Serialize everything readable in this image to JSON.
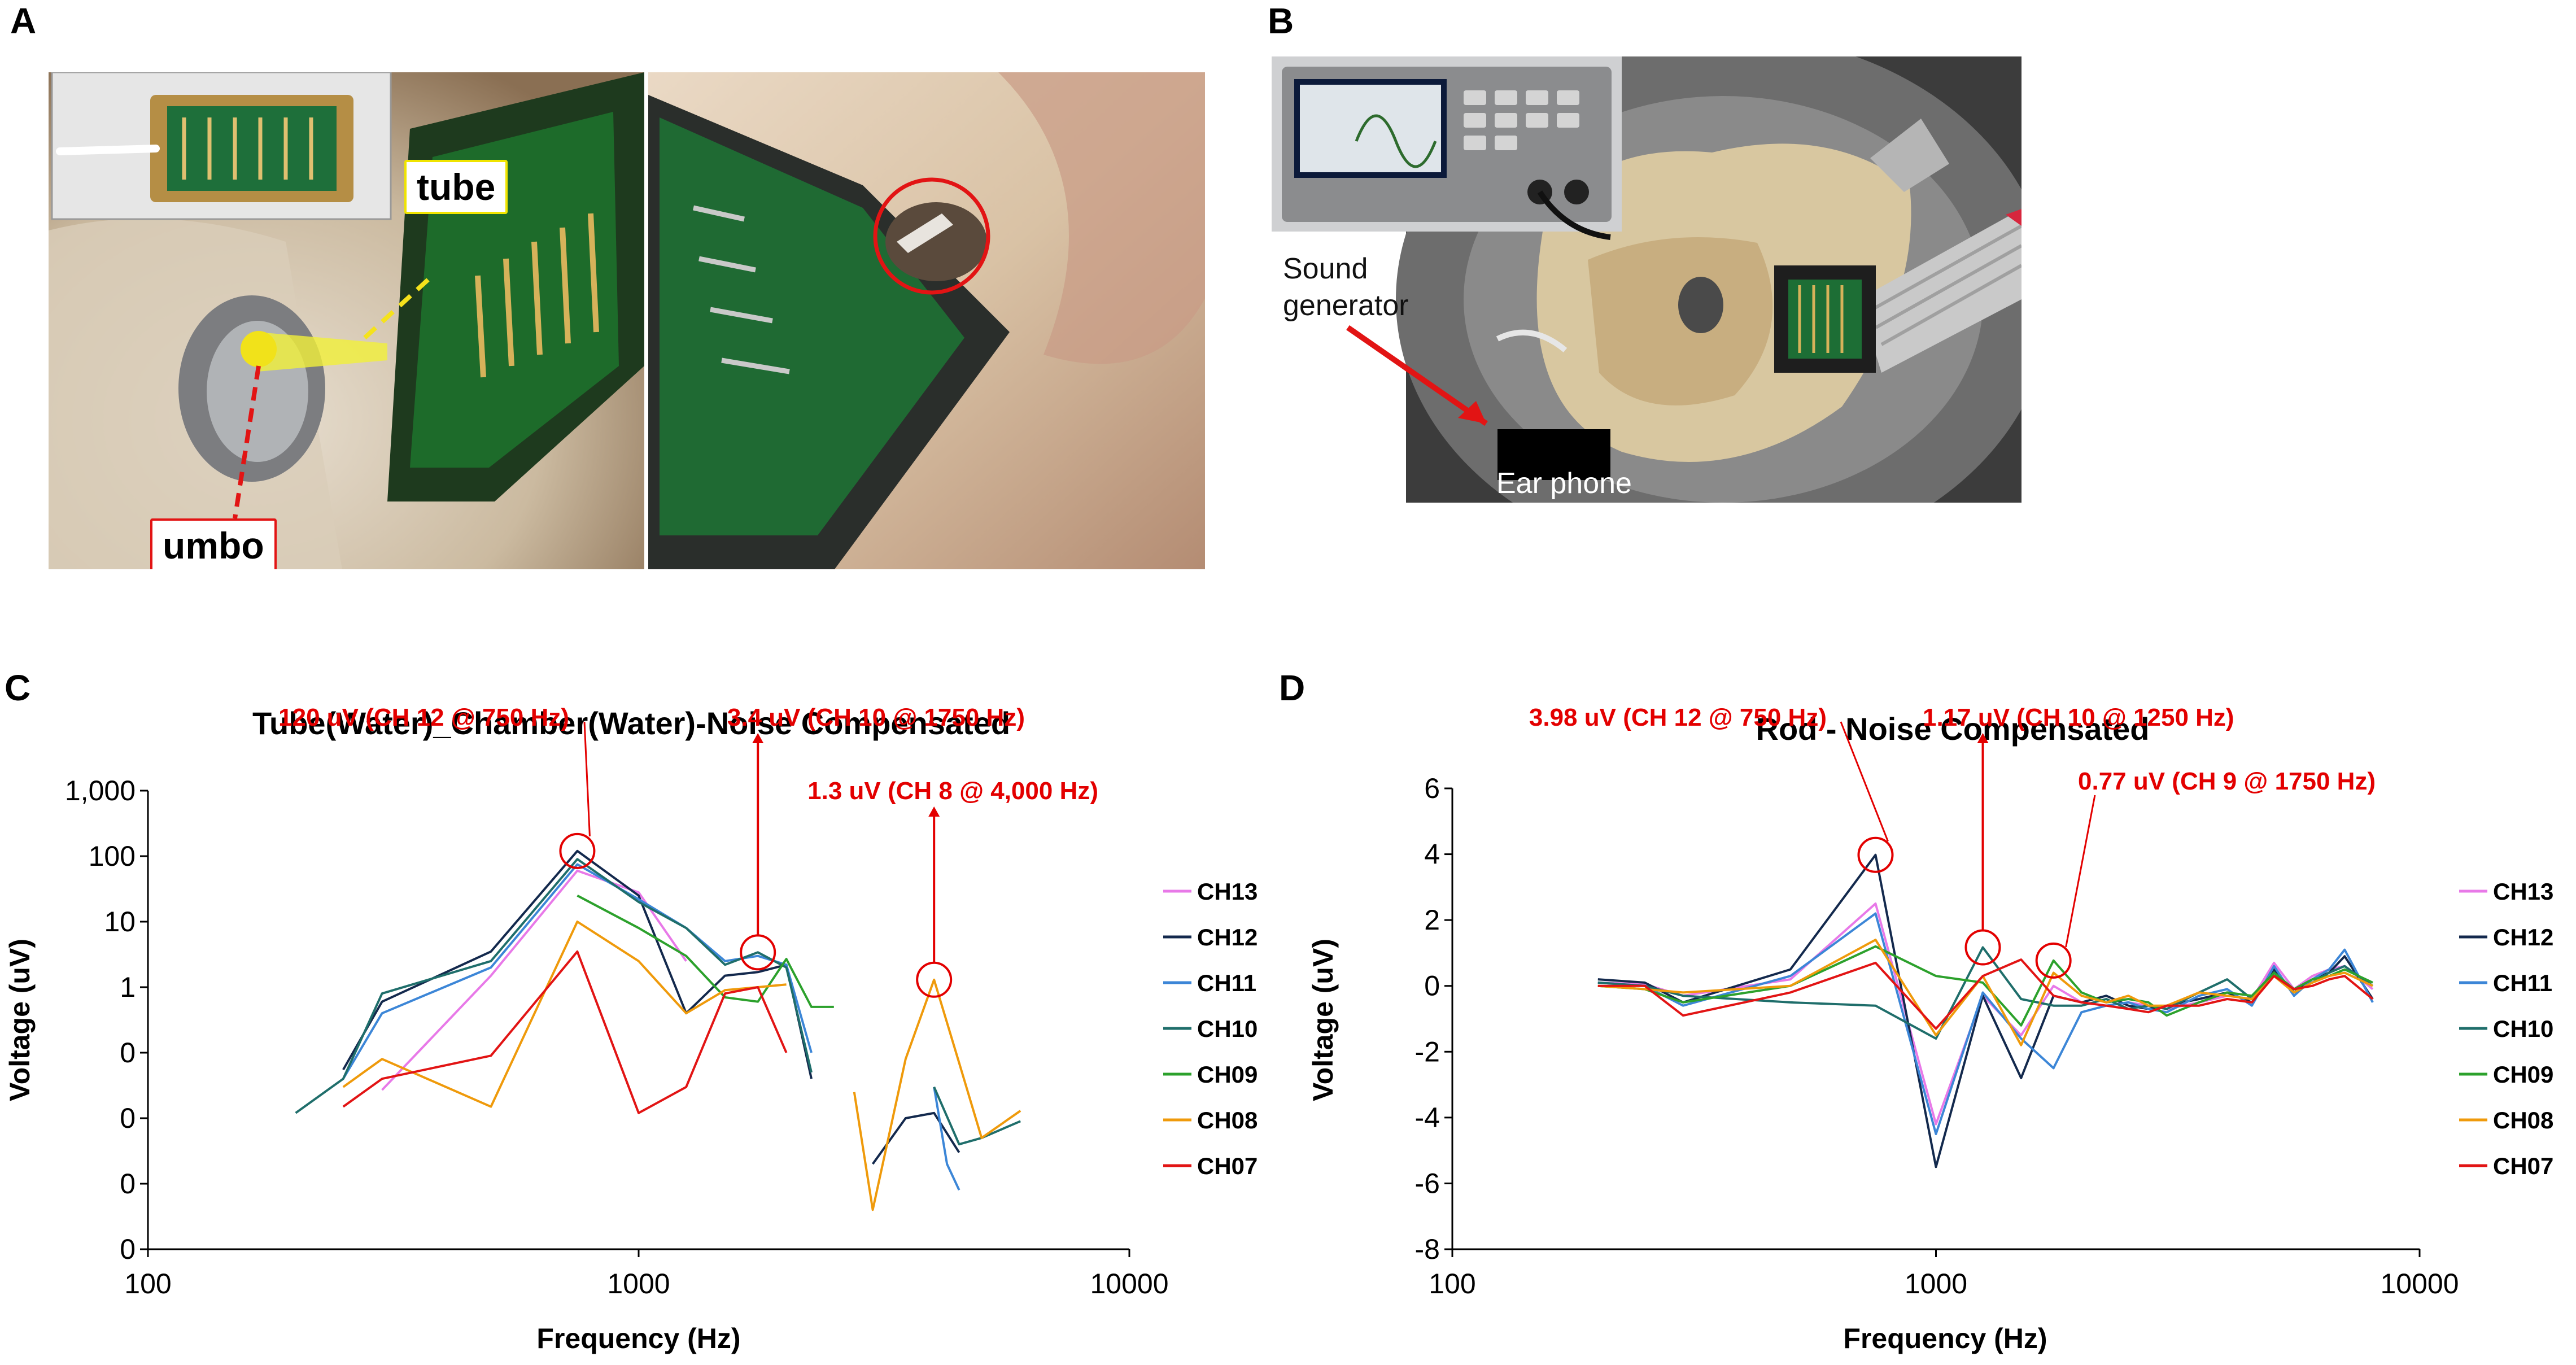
{
  "panel_labels": [
    "A",
    "B",
    "C",
    "D"
  ],
  "panel_a": {
    "tube_label": "tube",
    "umbo_label": "umbo"
  },
  "panel_b": {
    "sound_generator_label": "Sound\ngenerator",
    "earphone_label": "Ear phone"
  },
  "colors": {
    "CH13": "#e879e8",
    "CH12": "#13294d",
    "CH11": "#3c86d7",
    "CH10": "#1f6e6b",
    "CH09": "#2ca12c",
    "CH08": "#ef9a0b",
    "CH07": "#e21414",
    "annotation": "#e30000"
  },
  "chart_data": [
    {
      "type": "line",
      "title": "Tube(Water)_Chamber(Water)-Noise   Compensated",
      "xlabel": "Frequency (Hz)",
      "ylabel": "Voltage (uV)",
      "x_scale": "log",
      "xlim": [
        100,
        10000
      ],
      "x_ticks": [
        "100",
        "1000",
        "10000"
      ],
      "y_scale": "log",
      "y_ticks": [
        "0",
        "0",
        "0",
        "1",
        "10",
        "100",
        "1,000"
      ],
      "grid": false,
      "legend": "right",
      "annotations": [
        {
          "text": "120 uV (CH 12 @ 750 Hz)",
          "x": 750,
          "y": 120
        },
        {
          "text": "3.4 uV (CH 10 @ 1750 Hz)",
          "x": 1750,
          "y": 3.4
        },
        {
          "text": "1.3 uV (CH 8 @ 4,000 Hz)",
          "x": 4000,
          "y": 1.3
        }
      ],
      "series": [
        {
          "name": "CH13",
          "segments": [
            [
              [
                300,
                0.027
              ],
              [
                500,
                1.5
              ],
              [
                750,
                60
              ],
              [
                1000,
                28
              ],
              [
                1250,
                2.5
              ]
            ]
          ]
        },
        {
          "name": "CH12",
          "segments": [
            [
              [
                250,
                0.055
              ],
              [
                300,
                0.6
              ],
              [
                500,
                3.5
              ],
              [
                750,
                120
              ],
              [
                1000,
                25
              ],
              [
                1250,
                0.4
              ],
              [
                1500,
                1.5
              ],
              [
                1750,
                1.7
              ],
              [
                2000,
                2.2
              ],
              [
                2250,
                0.04
              ]
            ],
            [
              [
                3000,
                0.002
              ],
              [
                3500,
                0.01
              ],
              [
                4000,
                0.012
              ],
              [
                4500,
                0.003
              ]
            ]
          ]
        },
        {
          "name": "CH11",
          "segments": [
            [
              [
                250,
                0.04
              ],
              [
                300,
                0.4
              ],
              [
                500,
                2.0
              ],
              [
                750,
                75
              ],
              [
                1000,
                22
              ],
              [
                1250,
                8
              ],
              [
                1500,
                2.5
              ],
              [
                1750,
                3.0
              ],
              [
                2000,
                2.2
              ],
              [
                2250,
                0.1
              ]
            ],
            [
              [
                4000,
                0.03
              ],
              [
                4250,
                0.002
              ],
              [
                4500,
                0.0008
              ]
            ]
          ]
        },
        {
          "name": "CH10",
          "segments": [
            [
              [
                200,
                0.012
              ],
              [
                250,
                0.04
              ],
              [
                300,
                0.8
              ],
              [
                500,
                2.5
              ],
              [
                750,
                90
              ],
              [
                1000,
                20
              ],
              [
                1250,
                8
              ],
              [
                1500,
                2.2
              ],
              [
                1750,
                3.4
              ],
              [
                2000,
                2.0
              ],
              [
                2250,
                0.05
              ]
            ],
            [
              [
                4000,
                0.03
              ],
              [
                4500,
                0.004
              ],
              [
                5000,
                0.005
              ],
              [
                6000,
                0.009
              ]
            ]
          ]
        },
        {
          "name": "CH09",
          "segments": [
            [
              [
                750,
                25
              ],
              [
                1000,
                8
              ],
              [
                1250,
                3.0
              ],
              [
                1500,
                0.7
              ],
              [
                1750,
                0.6
              ],
              [
                2000,
                2.7
              ],
              [
                2250,
                0.5
              ],
              [
                2500,
                0.5
              ]
            ]
          ]
        },
        {
          "name": "CH08",
          "segments": [
            [
              [
                250,
                0.03
              ],
              [
                300,
                0.08
              ],
              [
                500,
                0.015
              ],
              [
                750,
                10
              ],
              [
                1000,
                2.5
              ],
              [
                1250,
                0.4
              ],
              [
                1500,
                0.9
              ],
              [
                1750,
                1.0
              ],
              [
                2000,
                1.1
              ]
            ],
            [
              [
                2750,
                0.025
              ],
              [
                3000,
                0.0004
              ],
              [
                3500,
                0.08
              ],
              [
                4000,
                1.3
              ],
              [
                4500,
                0.07
              ],
              [
                5000,
                0.005
              ],
              [
                6000,
                0.013
              ]
            ]
          ]
        },
        {
          "name": "CH07",
          "segments": [
            [
              [
                250,
                0.015
              ],
              [
                300,
                0.04
              ],
              [
                500,
                0.09
              ],
              [
                750,
                3.5
              ],
              [
                1000,
                0.012
              ],
              [
                1250,
                0.03
              ],
              [
                1500,
                0.8
              ],
              [
                1750,
                1.0
              ],
              [
                2000,
                0.1
              ]
            ]
          ]
        }
      ]
    },
    {
      "type": "line",
      "title": "Rod - Noise Compensated",
      "xlabel": "Frequency (Hz)",
      "ylabel": "Voltage (uV)",
      "x_scale": "log",
      "xlim": [
        100,
        10000
      ],
      "x_ticks": [
        "100",
        "1000",
        "10000"
      ],
      "ylim": [
        -8,
        6
      ],
      "y_ticks": [
        "-8",
        "-6",
        "-4",
        "-2",
        "0",
        "2",
        "4",
        "6"
      ],
      "grid": false,
      "legend": "right",
      "annotations": [
        {
          "text": "3.98 uV (CH 12 @ 750 Hz)",
          "x": 750,
          "y": 3.98
        },
        {
          "text": "1.17 uV (CH 10 @ 1250 Hz)",
          "x": 1250,
          "y": 1.17
        },
        {
          "text": "0.77 uV (CH 9 @ 1750 Hz)",
          "x": 1750,
          "y": 0.77
        }
      ],
      "series": [
        {
          "name": "CH13",
          "x": [
            200,
            250,
            300,
            500,
            750,
            1000,
            1250,
            1500,
            1750,
            2000,
            2250,
            2500,
            2750,
            3000,
            3500,
            4000,
            4500,
            5000,
            5500,
            6000,
            6500,
            7000,
            8000
          ],
          "values": [
            0.1,
            0.05,
            -0.3,
            0.2,
            2.5,
            -4.2,
            -0.3,
            -1.5,
            0.0,
            -0.5,
            -0.6,
            -0.5,
            -0.6,
            -0.7,
            -0.5,
            -0.3,
            -0.4,
            0.7,
            -0.1,
            0.3,
            0.5,
            0.6,
            -0.1
          ]
        },
        {
          "name": "CH12",
          "x": [
            200,
            250,
            300,
            500,
            750,
            1000,
            1250,
            1500,
            1750,
            2000,
            2250,
            2500,
            2750,
            3000,
            3500,
            4000,
            4500,
            5000,
            5500,
            6000,
            6500,
            7000,
            8000
          ],
          "values": [
            0.2,
            0.1,
            -0.5,
            0.5,
            3.98,
            -5.5,
            -0.3,
            -2.8,
            -0.3,
            -0.5,
            -0.3,
            -0.6,
            -0.7,
            -0.6,
            -0.4,
            -0.2,
            -0.5,
            0.5,
            -0.2,
            0.2,
            0.4,
            0.9,
            -0.4
          ]
        },
        {
          "name": "CH11",
          "x": [
            200,
            250,
            300,
            500,
            750,
            1000,
            1250,
            1500,
            1750,
            2000,
            2250,
            2500,
            2750,
            3000,
            3500,
            4000,
            4500,
            5000,
            5500,
            6000,
            6500,
            7000,
            8000
          ],
          "values": [
            0.1,
            0.0,
            -0.6,
            0.3,
            2.2,
            -4.5,
            -0.2,
            -1.6,
            -2.5,
            -0.8,
            -0.6,
            -0.5,
            -0.7,
            -0.8,
            -0.3,
            -0.1,
            -0.6,
            0.6,
            -0.3,
            0.2,
            0.5,
            1.1,
            -0.5
          ]
        },
        {
          "name": "CH10",
          "x": [
            200,
            250,
            300,
            500,
            750,
            1000,
            1250,
            1500,
            1750,
            2000,
            2250,
            2500,
            2750,
            3000,
            3500,
            4000,
            4500,
            5000,
            5500,
            6000,
            6500,
            7000,
            8000
          ],
          "values": [
            0.1,
            0.0,
            -0.3,
            -0.5,
            -0.6,
            -1.6,
            1.17,
            -0.4,
            -0.6,
            -0.6,
            -0.4,
            -0.7,
            -0.6,
            -0.7,
            -0.2,
            0.2,
            -0.4,
            0.4,
            -0.2,
            0.1,
            0.4,
            0.6,
            0.0
          ]
        },
        {
          "name": "CH09",
          "x": [
            200,
            250,
            300,
            500,
            750,
            1000,
            1250,
            1500,
            1750,
            2000,
            2250,
            2500,
            2750,
            3000,
            3500,
            4000,
            4500,
            5000,
            5500,
            6000,
            6500,
            7000,
            8000
          ],
          "values": [
            0.0,
            -0.1,
            -0.5,
            0.0,
            1.2,
            0.3,
            0.1,
            -1.2,
            0.77,
            -0.2,
            -0.5,
            -0.4,
            -0.5,
            -0.9,
            -0.5,
            -0.2,
            -0.3,
            0.4,
            -0.1,
            0.2,
            0.3,
            0.5,
            0.1
          ]
        },
        {
          "name": "CH08",
          "x": [
            200,
            250,
            300,
            500,
            750,
            1000,
            1250,
            1500,
            1750,
            2000,
            2250,
            2500,
            2750,
            3000,
            3500,
            4000,
            4500,
            5000,
            5500,
            6000,
            6500,
            7000,
            8000
          ],
          "values": [
            0.0,
            -0.1,
            -0.2,
            0.0,
            1.4,
            -1.5,
            0.3,
            -1.8,
            0.4,
            -0.3,
            -0.5,
            -0.3,
            -0.6,
            -0.6,
            -0.2,
            -0.3,
            -0.4,
            0.3,
            -0.2,
            0.1,
            0.3,
            0.4,
            0.0
          ]
        },
        {
          "name": "CH07",
          "x": [
            200,
            250,
            300,
            500,
            750,
            1000,
            1250,
            1500,
            1750,
            2000,
            2250,
            2500,
            2750,
            3000,
            3500,
            4000,
            4500,
            5000,
            5500,
            6000,
            6500,
            7000,
            8000
          ],
          "values": [
            0.0,
            0.0,
            -0.9,
            -0.2,
            0.7,
            -1.3,
            0.3,
            0.8,
            -0.3,
            -0.5,
            -0.6,
            -0.7,
            -0.8,
            -0.6,
            -0.6,
            -0.4,
            -0.5,
            0.3,
            -0.1,
            0.0,
            0.2,
            0.3,
            -0.4
          ]
        }
      ]
    }
  ]
}
